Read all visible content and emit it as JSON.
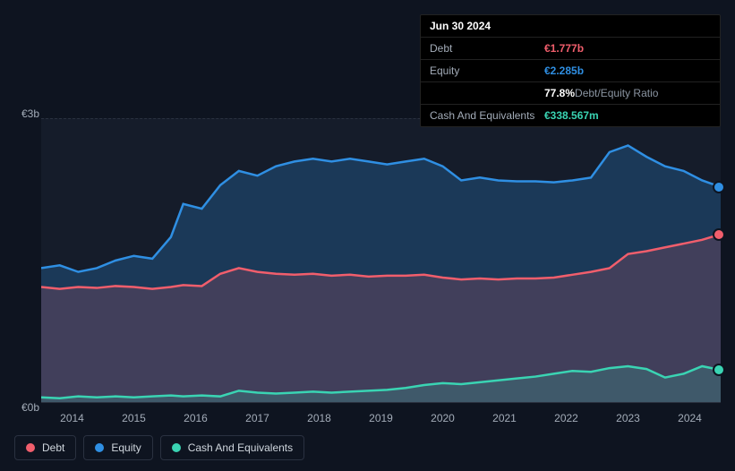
{
  "tooltip": {
    "date": "Jun 30 2024",
    "rows": [
      {
        "label": "Debt",
        "value": "€1.777b",
        "value_color": "#f15e6c"
      },
      {
        "label": "Equity",
        "value": "€2.285b",
        "value_color": "#2f8fe3"
      },
      {
        "label": "",
        "value": "77.8%",
        "suffix": "Debt/Equity Ratio",
        "value_color": "#ffffff",
        "suffix_color": "#8a94a1"
      },
      {
        "label": "Cash And Equivalents",
        "value": "€338.567m",
        "value_color": "#3ad4b3"
      }
    ]
  },
  "chart": {
    "type": "area",
    "background_color": "#151c2a",
    "page_background": "#0e1420",
    "grid_color": "#2a3140",
    "ylim": [
      0,
      3
    ],
    "y_ticks": [
      {
        "v": 3,
        "label": "€3b"
      },
      {
        "v": 0,
        "label": "€0b"
      }
    ],
    "x_labels": [
      "2014",
      "2015",
      "2016",
      "2017",
      "2018",
      "2019",
      "2020",
      "2021",
      "2022",
      "2023",
      "2024"
    ],
    "x_range": [
      2013.8,
      2024.8
    ],
    "series": [
      {
        "name": "Equity",
        "color": "#2f8fe3",
        "fill_color": "rgba(47,143,227,0.25)",
        "line_width": 2.5,
        "data": [
          [
            2013.8,
            1.42
          ],
          [
            2014.1,
            1.45
          ],
          [
            2014.4,
            1.38
          ],
          [
            2014.7,
            1.42
          ],
          [
            2015.0,
            1.5
          ],
          [
            2015.3,
            1.55
          ],
          [
            2015.6,
            1.52
          ],
          [
            2015.9,
            1.75
          ],
          [
            2016.1,
            2.1
          ],
          [
            2016.4,
            2.05
          ],
          [
            2016.7,
            2.3
          ],
          [
            2017.0,
            2.45
          ],
          [
            2017.3,
            2.4
          ],
          [
            2017.6,
            2.5
          ],
          [
            2017.9,
            2.55
          ],
          [
            2018.2,
            2.58
          ],
          [
            2018.5,
            2.55
          ],
          [
            2018.8,
            2.58
          ],
          [
            2019.1,
            2.55
          ],
          [
            2019.4,
            2.52
          ],
          [
            2019.7,
            2.55
          ],
          [
            2020.0,
            2.58
          ],
          [
            2020.3,
            2.5
          ],
          [
            2020.6,
            2.35
          ],
          [
            2020.9,
            2.38
          ],
          [
            2021.2,
            2.35
          ],
          [
            2021.5,
            2.34
          ],
          [
            2021.8,
            2.34
          ],
          [
            2022.1,
            2.33
          ],
          [
            2022.4,
            2.35
          ],
          [
            2022.7,
            2.38
          ],
          [
            2023.0,
            2.65
          ],
          [
            2023.3,
            2.72
          ],
          [
            2023.6,
            2.6
          ],
          [
            2023.9,
            2.5
          ],
          [
            2024.2,
            2.45
          ],
          [
            2024.5,
            2.35
          ],
          [
            2024.8,
            2.28
          ]
        ]
      },
      {
        "name": "Debt",
        "color": "#f15e6c",
        "fill_color": "rgba(241,94,108,0.18)",
        "line_width": 2.5,
        "data": [
          [
            2013.8,
            1.22
          ],
          [
            2014.1,
            1.2
          ],
          [
            2014.4,
            1.22
          ],
          [
            2014.7,
            1.21
          ],
          [
            2015.0,
            1.23
          ],
          [
            2015.3,
            1.22
          ],
          [
            2015.6,
            1.2
          ],
          [
            2015.9,
            1.22
          ],
          [
            2016.1,
            1.24
          ],
          [
            2016.4,
            1.23
          ],
          [
            2016.7,
            1.36
          ],
          [
            2017.0,
            1.42
          ],
          [
            2017.3,
            1.38
          ],
          [
            2017.6,
            1.36
          ],
          [
            2017.9,
            1.35
          ],
          [
            2018.2,
            1.36
          ],
          [
            2018.5,
            1.34
          ],
          [
            2018.8,
            1.35
          ],
          [
            2019.1,
            1.33
          ],
          [
            2019.4,
            1.34
          ],
          [
            2019.7,
            1.34
          ],
          [
            2020.0,
            1.35
          ],
          [
            2020.3,
            1.32
          ],
          [
            2020.6,
            1.3
          ],
          [
            2020.9,
            1.31
          ],
          [
            2021.2,
            1.3
          ],
          [
            2021.5,
            1.31
          ],
          [
            2021.8,
            1.31
          ],
          [
            2022.1,
            1.32
          ],
          [
            2022.4,
            1.35
          ],
          [
            2022.7,
            1.38
          ],
          [
            2023.0,
            1.42
          ],
          [
            2023.3,
            1.57
          ],
          [
            2023.6,
            1.6
          ],
          [
            2023.9,
            1.64
          ],
          [
            2024.2,
            1.68
          ],
          [
            2024.5,
            1.72
          ],
          [
            2024.8,
            1.78
          ]
        ]
      },
      {
        "name": "Cash And Equivalents",
        "color": "#3ad4b3",
        "fill_color": "rgba(58,212,179,0.18)",
        "line_width": 2.5,
        "data": [
          [
            2013.8,
            0.05
          ],
          [
            2014.1,
            0.04
          ],
          [
            2014.4,
            0.06
          ],
          [
            2014.7,
            0.05
          ],
          [
            2015.0,
            0.06
          ],
          [
            2015.3,
            0.05
          ],
          [
            2015.6,
            0.06
          ],
          [
            2015.9,
            0.07
          ],
          [
            2016.1,
            0.06
          ],
          [
            2016.4,
            0.07
          ],
          [
            2016.7,
            0.06
          ],
          [
            2017.0,
            0.12
          ],
          [
            2017.3,
            0.1
          ],
          [
            2017.6,
            0.09
          ],
          [
            2017.9,
            0.1
          ],
          [
            2018.2,
            0.11
          ],
          [
            2018.5,
            0.1
          ],
          [
            2018.8,
            0.11
          ],
          [
            2019.1,
            0.12
          ],
          [
            2019.4,
            0.13
          ],
          [
            2019.7,
            0.15
          ],
          [
            2020.0,
            0.18
          ],
          [
            2020.3,
            0.2
          ],
          [
            2020.6,
            0.19
          ],
          [
            2020.9,
            0.21
          ],
          [
            2021.2,
            0.23
          ],
          [
            2021.5,
            0.25
          ],
          [
            2021.8,
            0.27
          ],
          [
            2022.1,
            0.3
          ],
          [
            2022.4,
            0.33
          ],
          [
            2022.7,
            0.32
          ],
          [
            2023.0,
            0.36
          ],
          [
            2023.3,
            0.38
          ],
          [
            2023.6,
            0.35
          ],
          [
            2023.9,
            0.26
          ],
          [
            2024.2,
            0.3
          ],
          [
            2024.5,
            0.38
          ],
          [
            2024.8,
            0.34
          ]
        ]
      }
    ],
    "legend": [
      {
        "label": "Debt",
        "color": "#f15e6c"
      },
      {
        "label": "Equity",
        "color": "#2f8fe3"
      },
      {
        "label": "Cash And Equivalents",
        "color": "#3ad4b3"
      }
    ]
  }
}
